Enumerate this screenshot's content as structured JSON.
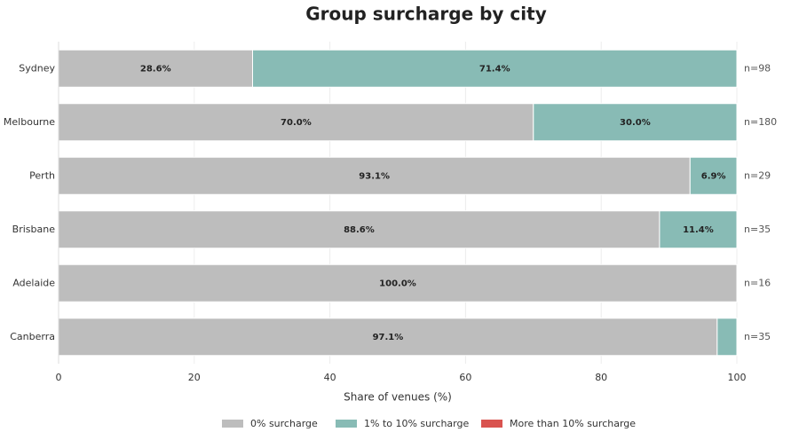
{
  "chart_data": {
    "type": "stacked-barh",
    "title": "Group surcharge by city",
    "categories": [
      "Sydney",
      "Melbourne",
      "Perth",
      "Brisbane",
      "Adelaide",
      "Canberra"
    ],
    "series": [
      {
        "name": "0% surcharge",
        "color": "#bdbdbd",
        "values": [
          28.6,
          70.0,
          93.1,
          88.6,
          100.0,
          97.1
        ],
        "value_labels": [
          "28.6%",
          "70.0%",
          "93.1%",
          "88.6%",
          "100.0%",
          "97.1%"
        ]
      },
      {
        "name": "1% to 10% surcharge",
        "color": "#88bbb5",
        "values": [
          71.4,
          30.0,
          6.9,
          11.4,
          0,
          2.9
        ],
        "value_labels": [
          "71.4%",
          "30.0%",
          "6.9%",
          "11.4%",
          null,
          null
        ]
      },
      {
        "name": "More than 10% surcharge",
        "color": "#d9534f",
        "values": [
          0,
          0,
          0,
          0,
          0,
          0
        ]
      }
    ],
    "bar_annotations": [
      "n=98",
      "n=180",
      "n=29",
      "n=35",
      "n=16",
      "n=35"
    ],
    "xlabel": "Share of venues (%)",
    "xlim": [
      0,
      100
    ],
    "xticks": [
      0,
      20,
      40,
      60,
      80,
      100
    ],
    "grid": true,
    "legend": "bottom"
  }
}
